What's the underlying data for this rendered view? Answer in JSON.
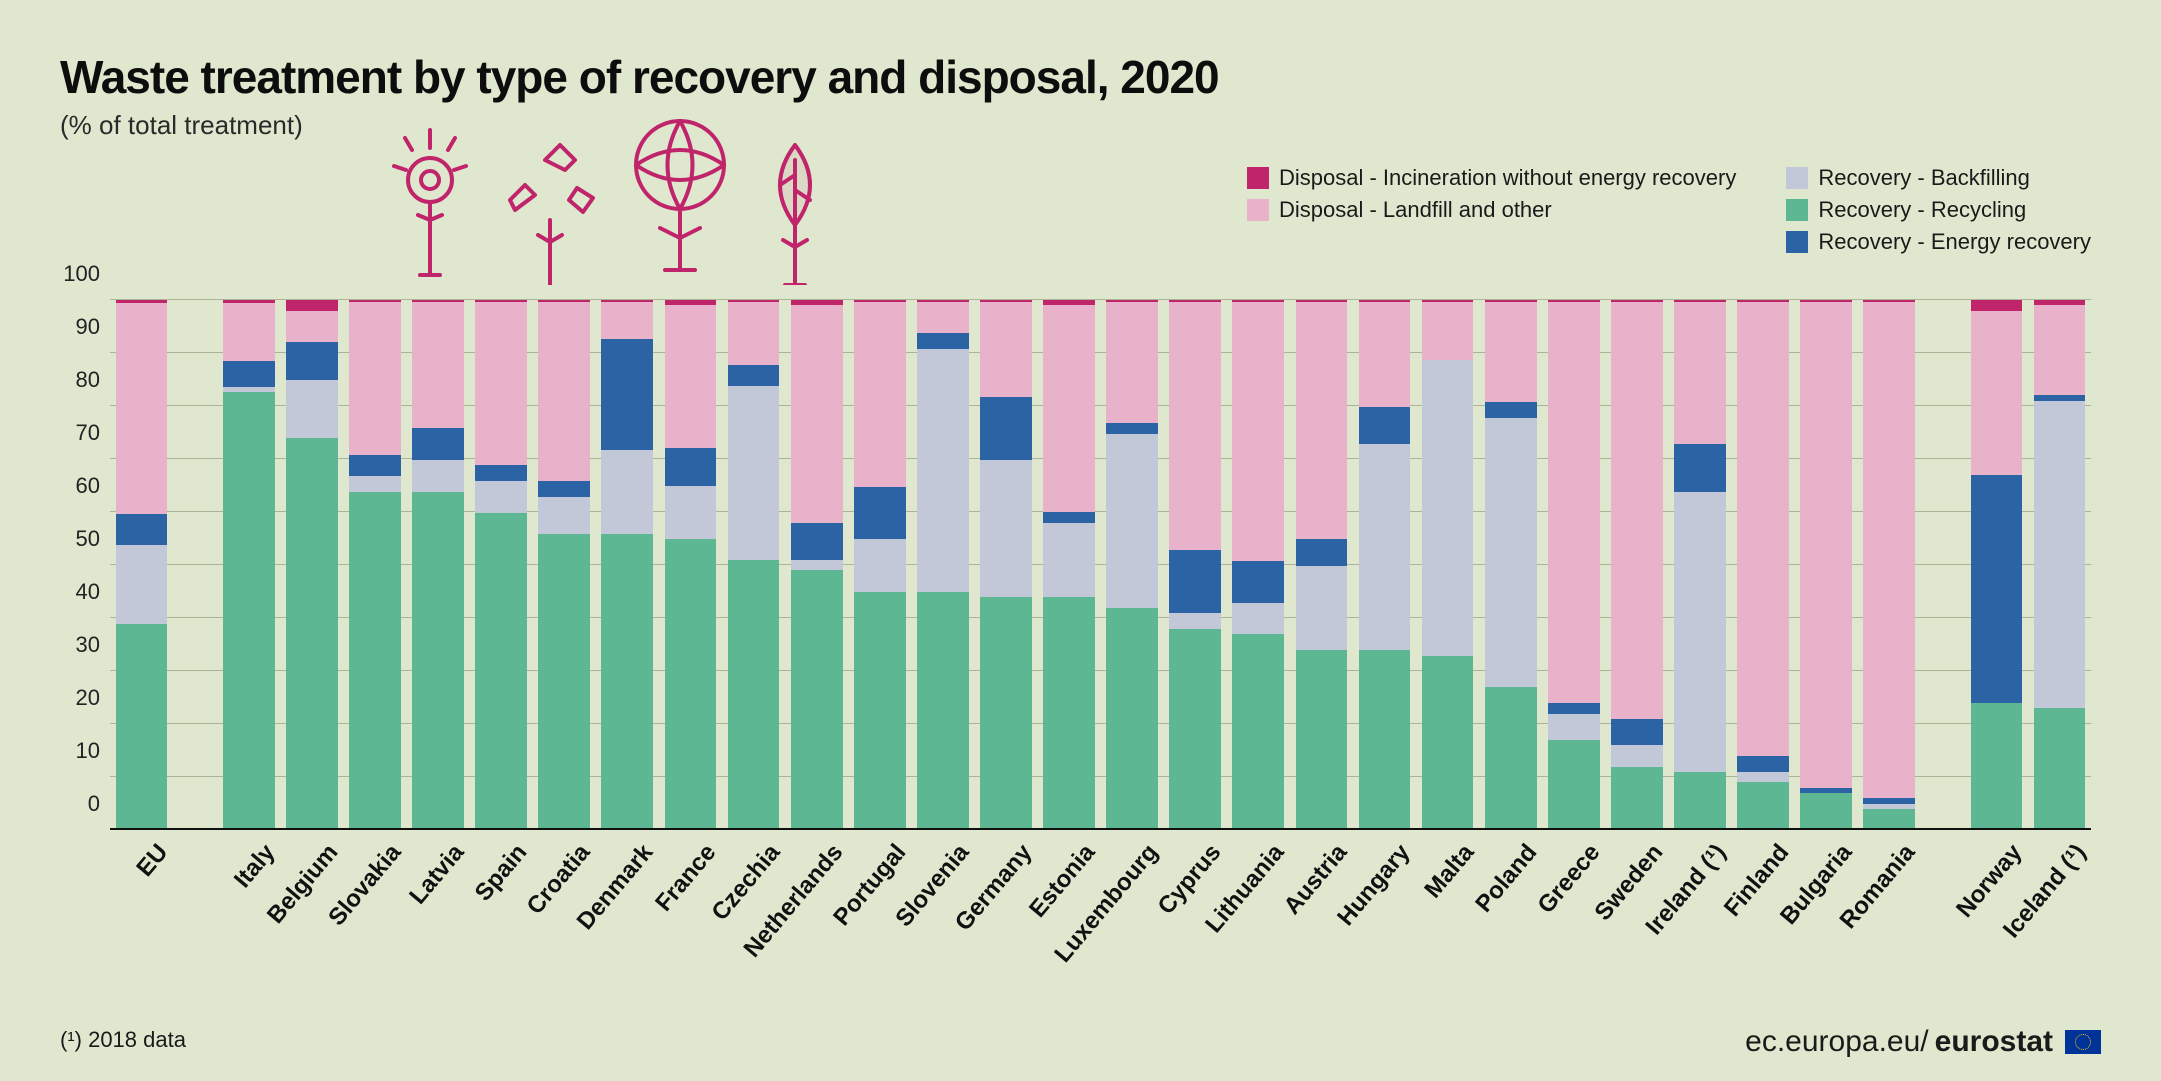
{
  "title": "Waste treatment by type of recovery and disposal, 2020",
  "subtitle": "(% of total treatment)",
  "footnote": "(¹) 2018 data",
  "source_prefix": "ec.europa.eu/",
  "source_bold": "eurostat",
  "chart": {
    "type": "stacked-bar",
    "ylim": [
      0,
      100
    ],
    "ytick_step": 10,
    "yticks": [
      0,
      10,
      20,
      30,
      40,
      50,
      60,
      70,
      80,
      90,
      100
    ],
    "background_color": "#dfe8cf",
    "grid_color": "#aab595",
    "axis_color": "#111111",
    "label_fontsize": 24,
    "series": [
      {
        "key": "recycling",
        "label": "Recovery - Recycling",
        "color": "#5cb792"
      },
      {
        "key": "backfilling",
        "label": "Recovery - Backfilling",
        "color": "#c3c8d9"
      },
      {
        "key": "energy",
        "label": "Recovery - Energy recovery",
        "color": "#2b63a4"
      },
      {
        "key": "landfill",
        "label": "Disposal - Landfill and other",
        "color": "#e8b2cb"
      },
      {
        "key": "inciner",
        "label": "Disposal - Incineration without energy recovery",
        "color": "#c0246b"
      }
    ],
    "legend_layout": [
      [
        "inciner",
        "landfill"
      ],
      [
        "backfilling",
        "recycling",
        "energy"
      ]
    ],
    "groups": [
      [
        {
          "label": "EU",
          "values": {
            "recycling": 39,
            "backfilling": 15,
            "energy": 6,
            "landfill": 40,
            "inciner": 0.5
          }
        }
      ],
      [
        {
          "label": "Italy",
          "values": {
            "recycling": 83,
            "backfilling": 1,
            "energy": 5,
            "landfill": 11,
            "inciner": 0.5
          }
        },
        {
          "label": "Belgium",
          "values": {
            "recycling": 74,
            "backfilling": 11,
            "energy": 7,
            "landfill": 6,
            "inciner": 2
          }
        },
        {
          "label": "Slovakia",
          "values": {
            "recycling": 64,
            "backfilling": 3,
            "energy": 4,
            "landfill": 29,
            "inciner": 0.3
          }
        },
        {
          "label": "Latvia",
          "values": {
            "recycling": 64,
            "backfilling": 6,
            "energy": 6,
            "landfill": 24,
            "inciner": 0.3
          }
        },
        {
          "label": "Spain",
          "values": {
            "recycling": 60,
            "backfilling": 6,
            "energy": 3,
            "landfill": 31,
            "inciner": 0.3
          }
        },
        {
          "label": "Croatia",
          "values": {
            "recycling": 56,
            "backfilling": 7,
            "energy": 3,
            "landfill": 34,
            "inciner": 0.3
          }
        },
        {
          "label": "Denmark",
          "values": {
            "recycling": 56,
            "backfilling": 16,
            "energy": 21,
            "landfill": 7,
            "inciner": 0.3
          }
        },
        {
          "label": "France",
          "values": {
            "recycling": 55,
            "backfilling": 10,
            "energy": 7,
            "landfill": 27,
            "inciner": 1
          }
        },
        {
          "label": "Czechia",
          "values": {
            "recycling": 51,
            "backfilling": 33,
            "energy": 4,
            "landfill": 12,
            "inciner": 0.3
          }
        },
        {
          "label": "Netherlands",
          "values": {
            "recycling": 49,
            "backfilling": 2,
            "energy": 7,
            "landfill": 41,
            "inciner": 1
          }
        },
        {
          "label": "Portugal",
          "values": {
            "recycling": 45,
            "backfilling": 10,
            "energy": 10,
            "landfill": 35,
            "inciner": 0.3
          }
        },
        {
          "label": "Slovenia",
          "values": {
            "recycling": 45,
            "backfilling": 46,
            "energy": 3,
            "landfill": 6,
            "inciner": 0.3
          }
        },
        {
          "label": "Germany",
          "values": {
            "recycling": 44,
            "backfilling": 26,
            "energy": 12,
            "landfill": 18,
            "inciner": 0.3
          }
        },
        {
          "label": "Estonia",
          "values": {
            "recycling": 44,
            "backfilling": 14,
            "energy": 2,
            "landfill": 39,
            "inciner": 1
          }
        },
        {
          "label": "Luxembourg",
          "values": {
            "recycling": 42,
            "backfilling": 33,
            "energy": 2,
            "landfill": 23,
            "inciner": 0.3
          }
        },
        {
          "label": "Cyprus",
          "values": {
            "recycling": 38,
            "backfilling": 3,
            "energy": 12,
            "landfill": 47,
            "inciner": 0.3
          }
        },
        {
          "label": "Lithuania",
          "values": {
            "recycling": 37,
            "backfilling": 6,
            "energy": 8,
            "landfill": 49,
            "inciner": 0.3
          }
        },
        {
          "label": "Austria",
          "values": {
            "recycling": 34,
            "backfilling": 16,
            "energy": 5,
            "landfill": 45,
            "inciner": 0.3
          }
        },
        {
          "label": "Hungary",
          "values": {
            "recycling": 34,
            "backfilling": 39,
            "energy": 7,
            "landfill": 20,
            "inciner": 0.3
          }
        },
        {
          "label": "Malta",
          "values": {
            "recycling": 33,
            "backfilling": 56,
            "energy": 0,
            "landfill": 11,
            "inciner": 0.3
          }
        },
        {
          "label": "Poland",
          "values": {
            "recycling": 27,
            "backfilling": 51,
            "energy": 3,
            "landfill": 19,
            "inciner": 0.3
          }
        },
        {
          "label": "Greece",
          "values": {
            "recycling": 17,
            "backfilling": 5,
            "energy": 2,
            "landfill": 76,
            "inciner": 0.3
          }
        },
        {
          "label": "Sweden",
          "values": {
            "recycling": 12,
            "backfilling": 4,
            "energy": 5,
            "landfill": 79,
            "inciner": 0.3
          }
        },
        {
          "label": "Ireland (¹)",
          "values": {
            "recycling": 11,
            "backfilling": 53,
            "energy": 9,
            "landfill": 27,
            "inciner": 0.3
          }
        },
        {
          "label": "Finland",
          "values": {
            "recycling": 9,
            "backfilling": 2,
            "energy": 3,
            "landfill": 86,
            "inciner": 0.3
          }
        },
        {
          "label": "Bulgaria",
          "values": {
            "recycling": 7,
            "backfilling": 0,
            "energy": 1,
            "landfill": 92,
            "inciner": 0.3
          }
        },
        {
          "label": "Romania",
          "values": {
            "recycling": 4,
            "backfilling": 1,
            "energy": 1,
            "landfill": 94,
            "inciner": 0.3
          }
        }
      ],
      [
        {
          "label": "Norway",
          "values": {
            "recycling": 24,
            "backfilling": 0,
            "energy": 43,
            "landfill": 31,
            "inciner": 2
          }
        },
        {
          "label": "Iceland (¹)",
          "values": {
            "recycling": 23,
            "backfilling": 58,
            "energy": 1,
            "landfill": 17,
            "inciner": 1
          }
        }
      ]
    ]
  }
}
